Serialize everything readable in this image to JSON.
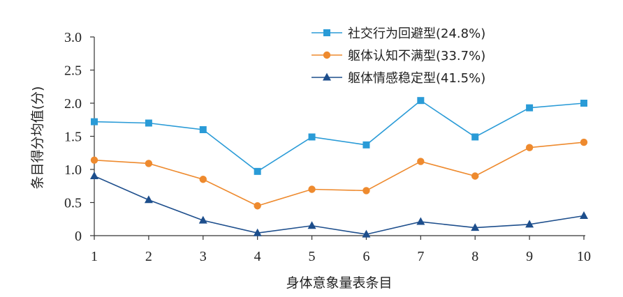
{
  "chart_data": {
    "type": "line",
    "xlabel": "身体意象量表条目",
    "ylabel": "条目得分均值(分)",
    "x": [
      1,
      2,
      3,
      4,
      5,
      6,
      7,
      8,
      9,
      10
    ],
    "xtick_labels": [
      "1",
      "2",
      "3",
      "4",
      "5",
      "6",
      "7",
      "8",
      "9",
      "10"
    ],
    "ylim": [
      0,
      3.0
    ],
    "ytick_labels": [
      "0",
      "0.5",
      "1.0",
      "1.5",
      "2.0",
      "2.5",
      "3.0"
    ],
    "ytick_values": [
      0,
      0.5,
      1.0,
      1.5,
      2.0,
      2.5,
      3.0
    ],
    "grid": false,
    "legend_position": "top-right",
    "series": [
      {
        "name": "社交行为回避型(24.8%)",
        "marker": "square",
        "color": "#2a9bd7",
        "values": [
          1.72,
          1.7,
          1.6,
          0.97,
          1.49,
          1.37,
          2.04,
          1.49,
          1.93,
          2.0
        ]
      },
      {
        "name": "躯体认知不满型(33.7%)",
        "marker": "circle",
        "color": "#ee8a2e",
        "values": [
          1.14,
          1.09,
          0.85,
          0.45,
          0.7,
          0.68,
          1.12,
          0.9,
          1.33,
          1.41
        ]
      },
      {
        "name": "躯体情感稳定型(41.5%)",
        "marker": "triangle",
        "color": "#1d4e8c",
        "values": [
          0.9,
          0.54,
          0.23,
          0.04,
          0.15,
          0.02,
          0.21,
          0.12,
          0.17,
          0.3
        ]
      }
    ]
  }
}
